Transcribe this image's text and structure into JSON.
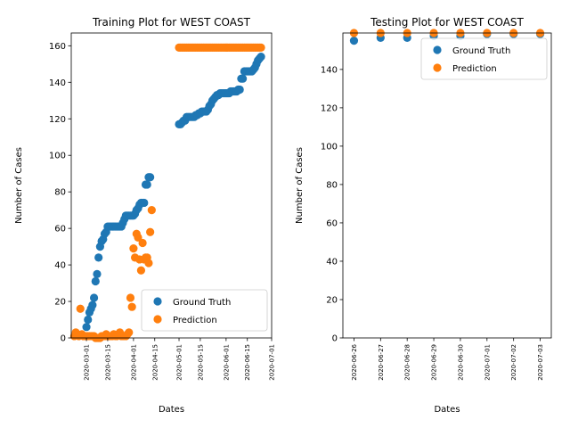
{
  "chart_data": [
    {
      "type": "scatter",
      "title": "Training Plot for WEST COAST",
      "xlabel": "Dates",
      "ylabel": "Number of Cases",
      "x_axis": "date",
      "xlim": [
        "2020-02-20",
        "2020-07-01"
      ],
      "ylim": [
        0,
        167
      ],
      "xticks": [
        "2020-03-01",
        "2020-03-15",
        "2020-04-01",
        "2020-04-15",
        "2020-05-01",
        "2020-05-15",
        "2020-06-01",
        "2020-06-15",
        "2020-07-01"
      ],
      "yticks": [
        0,
        20,
        40,
        60,
        80,
        100,
        120,
        140,
        160
      ],
      "grid": false,
      "legend_position": "lower-right",
      "series": [
        {
          "name": "Ground Truth",
          "color": "#1f77b4",
          "points": [
            [
              "2020-03-01",
              6
            ],
            [
              "2020-03-02",
              10
            ],
            [
              "2020-03-03",
              14
            ],
            [
              "2020-03-04",
              16
            ],
            [
              "2020-03-05",
              18
            ],
            [
              "2020-03-06",
              22
            ],
            [
              "2020-03-07",
              31
            ],
            [
              "2020-03-08",
              35
            ],
            [
              "2020-03-09",
              44
            ],
            [
              "2020-03-10",
              50
            ],
            [
              "2020-03-11",
              53
            ],
            [
              "2020-03-12",
              54
            ],
            [
              "2020-03-13",
              57
            ],
            [
              "2020-03-14",
              58
            ],
            [
              "2020-03-15",
              61
            ],
            [
              "2020-03-16",
              61
            ],
            [
              "2020-03-17",
              61
            ],
            [
              "2020-03-18",
              61
            ],
            [
              "2020-03-19",
              61
            ],
            [
              "2020-03-20",
              61
            ],
            [
              "2020-03-21",
              61
            ],
            [
              "2020-03-22",
              61
            ],
            [
              "2020-03-23",
              61
            ],
            [
              "2020-03-24",
              61
            ],
            [
              "2020-03-25",
              63
            ],
            [
              "2020-03-26",
              65
            ],
            [
              "2020-03-27",
              67
            ],
            [
              "2020-03-28",
              67
            ],
            [
              "2020-03-29",
              67
            ],
            [
              "2020-03-30",
              67
            ],
            [
              "2020-03-31",
              67
            ],
            [
              "2020-04-01",
              67
            ],
            [
              "2020-04-02",
              68
            ],
            [
              "2020-04-03",
              70
            ],
            [
              "2020-04-04",
              71
            ],
            [
              "2020-04-05",
              73
            ],
            [
              "2020-04-06",
              74
            ],
            [
              "2020-04-07",
              74
            ],
            [
              "2020-04-08",
              74
            ],
            [
              "2020-04-09",
              84
            ],
            [
              "2020-04-10",
              84
            ],
            [
              "2020-04-11",
              88
            ],
            [
              "2020-04-12",
              88
            ],
            [
              "2020-05-01",
              117
            ],
            [
              "2020-05-02",
              117
            ],
            [
              "2020-05-03",
              118
            ],
            [
              "2020-05-04",
              119
            ],
            [
              "2020-05-05",
              119
            ],
            [
              "2020-05-06",
              121
            ],
            [
              "2020-05-07",
              121
            ],
            [
              "2020-05-08",
              121
            ],
            [
              "2020-05-09",
              121
            ],
            [
              "2020-05-10",
              121
            ],
            [
              "2020-05-11",
              121
            ],
            [
              "2020-05-12",
              122
            ],
            [
              "2020-05-13",
              122
            ],
            [
              "2020-05-14",
              123
            ],
            [
              "2020-05-15",
              123
            ],
            [
              "2020-05-16",
              124
            ],
            [
              "2020-05-17",
              124
            ],
            [
              "2020-05-18",
              124
            ],
            [
              "2020-05-19",
              124
            ],
            [
              "2020-05-20",
              125
            ],
            [
              "2020-05-21",
              127
            ],
            [
              "2020-05-22",
              128
            ],
            [
              "2020-05-23",
              130
            ],
            [
              "2020-05-24",
              131
            ],
            [
              "2020-05-25",
              132
            ],
            [
              "2020-05-26",
              133
            ],
            [
              "2020-05-27",
              133
            ],
            [
              "2020-05-28",
              134
            ],
            [
              "2020-05-29",
              134
            ],
            [
              "2020-05-30",
              134
            ],
            [
              "2020-05-31",
              134
            ],
            [
              "2020-06-01",
              134
            ],
            [
              "2020-06-02",
              134
            ],
            [
              "2020-06-03",
              134
            ],
            [
              "2020-06-04",
              135
            ],
            [
              "2020-06-05",
              135
            ],
            [
              "2020-06-06",
              135
            ],
            [
              "2020-06-07",
              135
            ],
            [
              "2020-06-08",
              135
            ],
            [
              "2020-06-09",
              136
            ],
            [
              "2020-06-10",
              136
            ],
            [
              "2020-06-11",
              142
            ],
            [
              "2020-06-12",
              142
            ],
            [
              "2020-06-13",
              146
            ],
            [
              "2020-06-14",
              146
            ],
            [
              "2020-06-15",
              146
            ],
            [
              "2020-06-16",
              146
            ],
            [
              "2020-06-17",
              146
            ],
            [
              "2020-06-18",
              146
            ],
            [
              "2020-06-19",
              147
            ],
            [
              "2020-06-20",
              148
            ],
            [
              "2020-06-21",
              150
            ],
            [
              "2020-06-22",
              152
            ],
            [
              "2020-06-23",
              153
            ],
            [
              "2020-06-24",
              154
            ]
          ]
        },
        {
          "name": "Prediction",
          "color": "#ff7f0e",
          "points": [
            [
              "2020-02-22",
              1
            ],
            [
              "2020-02-23",
              3
            ],
            [
              "2020-02-24",
              2
            ],
            [
              "2020-02-25",
              1
            ],
            [
              "2020-02-26",
              16
            ],
            [
              "2020-02-27",
              2
            ],
            [
              "2020-02-28",
              1
            ],
            [
              "2020-02-29",
              1
            ],
            [
              "2020-03-01",
              1
            ],
            [
              "2020-03-02",
              1
            ],
            [
              "2020-03-03",
              1
            ],
            [
              "2020-03-04",
              1
            ],
            [
              "2020-03-05",
              1
            ],
            [
              "2020-03-06",
              1
            ],
            [
              "2020-03-07",
              0
            ],
            [
              "2020-03-08",
              0
            ],
            [
              "2020-03-09",
              0
            ],
            [
              "2020-03-10",
              0
            ],
            [
              "2020-03-11",
              1
            ],
            [
              "2020-03-12",
              1
            ],
            [
              "2020-03-13",
              1
            ],
            [
              "2020-03-14",
              2
            ],
            [
              "2020-03-15",
              1
            ],
            [
              "2020-03-16",
              1
            ],
            [
              "2020-03-17",
              1
            ],
            [
              "2020-03-18",
              1
            ],
            [
              "2020-03-19",
              2
            ],
            [
              "2020-03-20",
              1
            ],
            [
              "2020-03-21",
              1
            ],
            [
              "2020-03-22",
              2
            ],
            [
              "2020-03-23",
              3
            ],
            [
              "2020-03-24",
              1
            ],
            [
              "2020-03-25",
              1
            ],
            [
              "2020-03-26",
              1
            ],
            [
              "2020-03-27",
              1
            ],
            [
              "2020-03-28",
              2
            ],
            [
              "2020-03-29",
              3
            ],
            [
              "2020-03-30",
              22
            ],
            [
              "2020-03-31",
              17
            ],
            [
              "2020-04-01",
              49
            ],
            [
              "2020-04-02",
              44
            ],
            [
              "2020-04-03",
              57
            ],
            [
              "2020-04-04",
              55
            ],
            [
              "2020-04-05",
              43
            ],
            [
              "2020-04-06",
              37
            ],
            [
              "2020-04-07",
              52
            ],
            [
              "2020-04-08",
              43
            ],
            [
              "2020-04-09",
              44
            ],
            [
              "2020-04-10",
              44
            ],
            [
              "2020-04-11",
              41
            ],
            [
              "2020-04-12",
              58
            ],
            [
              "2020-04-13",
              70
            ],
            [
              "2020-05-01",
              159
            ],
            [
              "2020-05-02",
              159
            ],
            [
              "2020-05-03",
              159
            ],
            [
              "2020-05-04",
              159
            ],
            [
              "2020-05-05",
              159
            ],
            [
              "2020-05-06",
              159
            ],
            [
              "2020-05-07",
              159
            ],
            [
              "2020-05-08",
              159
            ],
            [
              "2020-05-09",
              159
            ],
            [
              "2020-05-10",
              159
            ],
            [
              "2020-05-11",
              159
            ],
            [
              "2020-05-12",
              159
            ],
            [
              "2020-05-13",
              159
            ],
            [
              "2020-05-14",
              159
            ],
            [
              "2020-05-15",
              159
            ],
            [
              "2020-05-16",
              159
            ],
            [
              "2020-05-17",
              159
            ],
            [
              "2020-05-18",
              159
            ],
            [
              "2020-05-19",
              159
            ],
            [
              "2020-05-20",
              159
            ],
            [
              "2020-05-21",
              159
            ],
            [
              "2020-05-22",
              159
            ],
            [
              "2020-05-23",
              159
            ],
            [
              "2020-05-24",
              159
            ],
            [
              "2020-05-25",
              159
            ],
            [
              "2020-05-26",
              159
            ],
            [
              "2020-05-27",
              159
            ],
            [
              "2020-05-28",
              159
            ],
            [
              "2020-05-29",
              159
            ],
            [
              "2020-05-30",
              159
            ],
            [
              "2020-05-31",
              159
            ],
            [
              "2020-06-01",
              159
            ],
            [
              "2020-06-02",
              159
            ],
            [
              "2020-06-03",
              159
            ],
            [
              "2020-06-04",
              159
            ],
            [
              "2020-06-05",
              159
            ],
            [
              "2020-06-06",
              159
            ],
            [
              "2020-06-07",
              159
            ],
            [
              "2020-06-08",
              159
            ],
            [
              "2020-06-09",
              159
            ],
            [
              "2020-06-10",
              159
            ],
            [
              "2020-06-11",
              159
            ],
            [
              "2020-06-12",
              159
            ],
            [
              "2020-06-13",
              159
            ],
            [
              "2020-06-14",
              159
            ],
            [
              "2020-06-15",
              159
            ],
            [
              "2020-06-16",
              159
            ],
            [
              "2020-06-17",
              159
            ],
            [
              "2020-06-18",
              159
            ],
            [
              "2020-06-19",
              159
            ],
            [
              "2020-06-20",
              159
            ],
            [
              "2020-06-21",
              159
            ],
            [
              "2020-06-22",
              159
            ],
            [
              "2020-06-23",
              159
            ],
            [
              "2020-06-24",
              159
            ]
          ]
        }
      ]
    },
    {
      "type": "scatter",
      "title": "Testing Plot for WEST COAST",
      "xlabel": "Dates",
      "ylabel": "Number of Cases",
      "x_axis": "date",
      "xlim": [
        "2020-06-25 14:00",
        "2020-07-03 10:00"
      ],
      "ylim": [
        0,
        159
      ],
      "xticks": [
        "2020-06-26",
        "2020-06-27",
        "2020-06-28",
        "2020-06-29",
        "2020-06-30",
        "2020-07-01",
        "2020-07-02",
        "2020-07-03"
      ],
      "yticks": [
        0,
        20,
        40,
        60,
        80,
        100,
        120,
        140
      ],
      "grid": false,
      "legend_position": "upper-right",
      "series": [
        {
          "name": "Ground Truth",
          "color": "#1f77b4",
          "points": [
            [
              "2020-06-26",
              155
            ],
            [
              "2020-06-27",
              156.5
            ],
            [
              "2020-06-28",
              156.5
            ],
            [
              "2020-06-29",
              157.5
            ],
            [
              "2020-06-30",
              157.5
            ],
            [
              "2020-07-01",
              158.5
            ],
            [
              "2020-07-02",
              158.5
            ],
            [
              "2020-07-03",
              158.5
            ]
          ]
        },
        {
          "name": "Prediction",
          "color": "#ff7f0e",
          "points": [
            [
              "2020-06-26",
              159
            ],
            [
              "2020-06-27",
              159
            ],
            [
              "2020-06-28",
              159
            ],
            [
              "2020-06-29",
              159
            ],
            [
              "2020-06-30",
              159
            ],
            [
              "2020-07-01",
              159
            ],
            [
              "2020-07-02",
              159
            ],
            [
              "2020-07-03",
              159
            ]
          ]
        }
      ]
    }
  ]
}
